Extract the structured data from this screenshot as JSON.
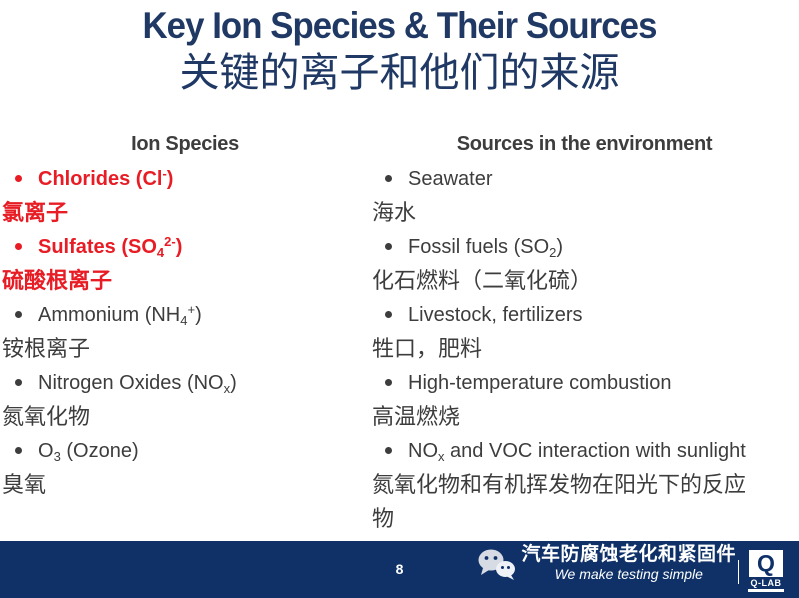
{
  "title": {
    "line1": "Key Ion Species & Their Sources",
    "line2": "关键的离子和他们的来源"
  },
  "colors": {
    "title_navy": "#1f3864",
    "footer_navy": "#0f3168",
    "emphasis_red": "#e81c24",
    "body_gray": "#3d3d3d"
  },
  "columns": [
    {
      "header": "Ion Species",
      "items": [
        {
          "type": "bullet",
          "color": "red",
          "bold": true,
          "parts": [
            {
              "t": "text",
              "v": "Chlorides (Cl"
            },
            {
              "t": "sup",
              "v": "-"
            },
            {
              "t": "text",
              "v": ")"
            }
          ]
        },
        {
          "type": "plain",
          "color": "red",
          "bold": true,
          "lang": "zh",
          "parts": [
            {
              "t": "text",
              "v": "氯离子"
            }
          ]
        },
        {
          "type": "bullet",
          "color": "red",
          "bold": true,
          "parts": [
            {
              "t": "text",
              "v": "Sulfates (SO"
            },
            {
              "t": "sub",
              "v": "4"
            },
            {
              "t": "sup",
              "v": "2-"
            },
            {
              "t": "text",
              "v": ")"
            }
          ]
        },
        {
          "type": "plain",
          "color": "red",
          "bold": true,
          "lang": "zh",
          "parts": [
            {
              "t": "text",
              "v": "硫酸根离子"
            }
          ]
        },
        {
          "type": "bullet",
          "color": "gray",
          "bold": false,
          "parts": [
            {
              "t": "text",
              "v": "Ammonium (NH"
            },
            {
              "t": "sub",
              "v": "4"
            },
            {
              "t": "sup",
              "v": "+"
            },
            {
              "t": "text",
              "v": ")"
            }
          ]
        },
        {
          "type": "plain",
          "color": "gray",
          "bold": false,
          "lang": "zh",
          "parts": [
            {
              "t": "text",
              "v": "铵根离子"
            }
          ]
        },
        {
          "type": "bullet",
          "color": "gray",
          "bold": false,
          "parts": [
            {
              "t": "text",
              "v": "Nitrogen Oxides (NO"
            },
            {
              "t": "sub",
              "v": "x"
            },
            {
              "t": "text",
              "v": ")"
            }
          ]
        },
        {
          "type": "plain",
          "color": "gray",
          "bold": false,
          "lang": "zh",
          "parts": [
            {
              "t": "text",
              "v": "氮氧化物"
            }
          ]
        },
        {
          "type": "bullet",
          "color": "gray",
          "bold": false,
          "parts": [
            {
              "t": "text",
              "v": "O"
            },
            {
              "t": "sub",
              "v": "3"
            },
            {
              "t": "text",
              "v": " (Ozone)"
            }
          ]
        },
        {
          "type": "plain",
          "color": "gray",
          "bold": false,
          "lang": "zh",
          "parts": [
            {
              "t": "text",
              "v": "臭氧"
            }
          ]
        }
      ]
    },
    {
      "header": "Sources in the environment",
      "items": [
        {
          "type": "bullet",
          "color": "gray",
          "bold": false,
          "parts": [
            {
              "t": "text",
              "v": "Seawater"
            }
          ]
        },
        {
          "type": "plain",
          "color": "gray",
          "bold": false,
          "lang": "zh",
          "parts": [
            {
              "t": "text",
              "v": "海水"
            }
          ]
        },
        {
          "type": "bullet",
          "color": "gray",
          "bold": false,
          "parts": [
            {
              "t": "text",
              "v": "Fossil fuels (SO"
            },
            {
              "t": "sub",
              "v": "2"
            },
            {
              "t": "text",
              "v": ")"
            }
          ]
        },
        {
          "type": "plain",
          "color": "gray",
          "bold": false,
          "lang": "zh",
          "parts": [
            {
              "t": "text",
              "v": "化石燃料（二氧化硫）"
            }
          ]
        },
        {
          "type": "bullet",
          "color": "gray",
          "bold": false,
          "parts": [
            {
              "t": "text",
              "v": "Livestock, fertilizers"
            }
          ]
        },
        {
          "type": "plain",
          "color": "gray",
          "bold": false,
          "lang": "zh",
          "parts": [
            {
              "t": "text",
              "v": "牲口，肥料"
            }
          ]
        },
        {
          "type": "bullet",
          "color": "gray",
          "bold": false,
          "parts": [
            {
              "t": "text",
              "v": "High-temperature combustion"
            }
          ]
        },
        {
          "type": "plain",
          "color": "gray",
          "bold": false,
          "lang": "zh",
          "parts": [
            {
              "t": "text",
              "v": "高温燃烧"
            }
          ]
        },
        {
          "type": "bullet",
          "color": "gray",
          "bold": false,
          "parts": [
            {
              "t": "text",
              "v": "NO"
            },
            {
              "t": "sub",
              "v": "x"
            },
            {
              "t": "text",
              "v": " and VOC interaction with sunlight"
            }
          ]
        },
        {
          "type": "plain",
          "color": "gray",
          "bold": false,
          "lang": "zh",
          "parts": [
            {
              "t": "text",
              "v": "氮氧化物和有机挥发物在阳光下的反应物"
            }
          ]
        }
      ]
    }
  ],
  "footer": {
    "page_number": "8",
    "channel_name": "汽车防腐蚀老化和紧固件",
    "tagline": "We make testing simple",
    "logo": {
      "letter": "Q",
      "label": "Q-LAB"
    }
  }
}
